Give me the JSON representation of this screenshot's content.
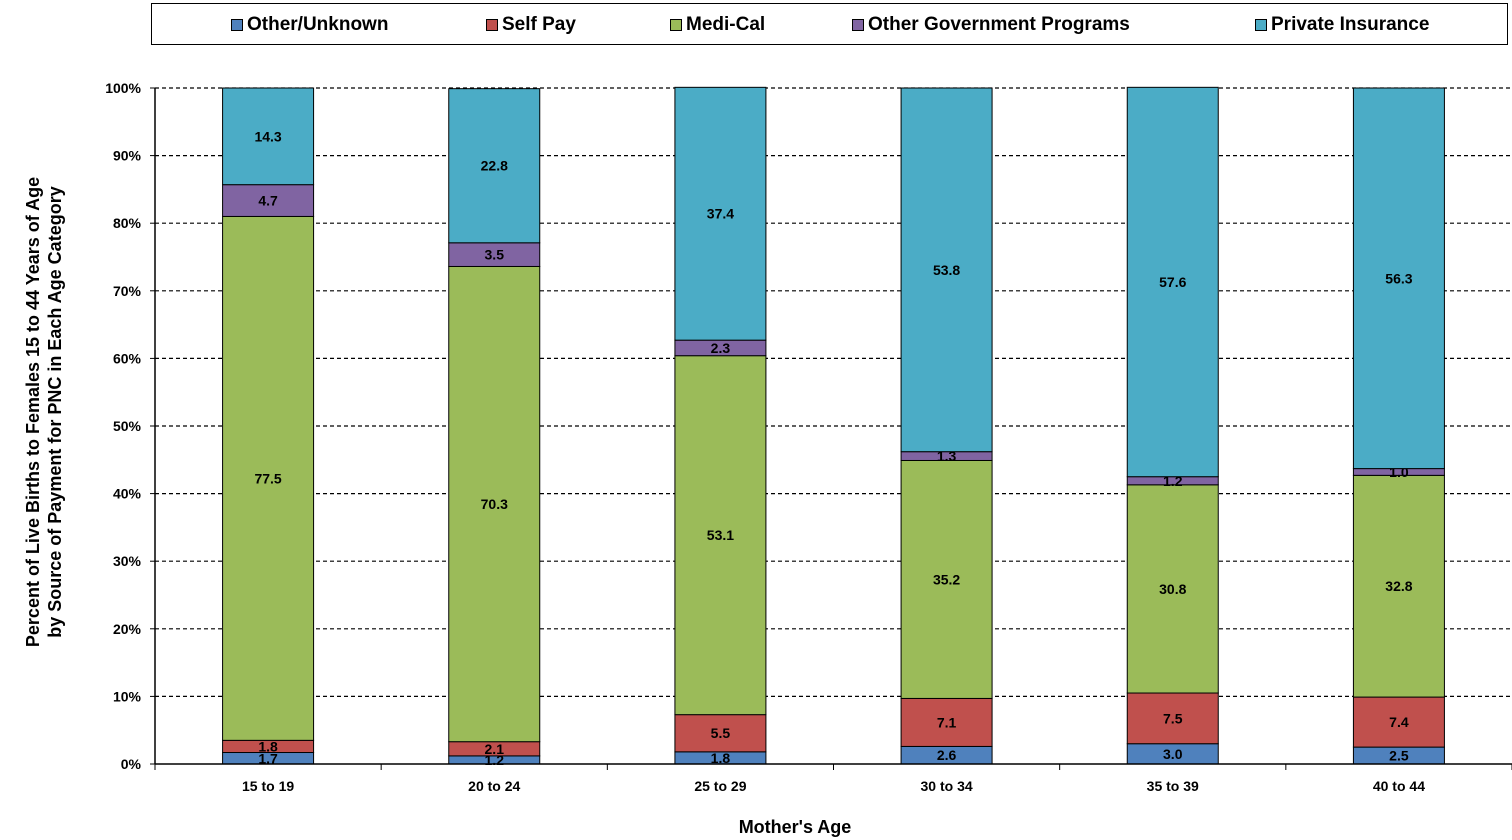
{
  "chart_data": {
    "type": "bar",
    "stacked": true,
    "percent_stacked": true,
    "title": "",
    "xlabel": "Mother's Age",
    "ylabel_lines": [
      "Percent of Live Births to Females 15 to 44 Years of Age",
      "by Source of Payment for PNC in Each Age Category"
    ],
    "categories": [
      "15 to 19",
      "20 to 24",
      "25 to 29",
      "30 to 34",
      "35 to 39",
      "40 to 44"
    ],
    "ylim": [
      0,
      100
    ],
    "yticks": [
      "0%",
      "10%",
      "20%",
      "30%",
      "40%",
      "50%",
      "60%",
      "70%",
      "80%",
      "90%",
      "100%"
    ],
    "grid": "horizontal-dashed",
    "legend_position": "top",
    "series": [
      {
        "name": "Other/Unknown",
        "color": "#4F81BD",
        "values": [
          1.7,
          1.2,
          1.8,
          2.6,
          3.0,
          2.5
        ],
        "labels": [
          "1.7",
          "1.2",
          "1.8",
          "2.6",
          "3.0",
          "2.5"
        ]
      },
      {
        "name": "Self Pay",
        "color": "#C0504D",
        "values": [
          1.8,
          2.1,
          5.5,
          7.1,
          7.5,
          7.4
        ],
        "labels": [
          "1.8",
          "2.1",
          "5.5",
          "7.1",
          "7.5",
          "7.4"
        ]
      },
      {
        "name": "Medi-Cal",
        "color": "#9BBB59",
        "values": [
          77.5,
          70.3,
          53.1,
          35.2,
          30.8,
          32.8
        ],
        "labels": [
          "77.5",
          "70.3",
          "53.1",
          "35.2",
          "30.8",
          "32.8"
        ]
      },
      {
        "name": "Other Government Programs",
        "color": "#8064A2",
        "values": [
          4.7,
          3.5,
          2.3,
          1.3,
          1.2,
          1.0
        ],
        "labels": [
          "4.7",
          "3.5",
          "2.3",
          "1.3",
          "1.2",
          "1.0"
        ]
      },
      {
        "name": "Private Insurance",
        "color": "#4BACC6",
        "values": [
          14.3,
          22.8,
          37.4,
          53.8,
          57.6,
          56.3
        ],
        "labels": [
          "14.3",
          "22.8",
          "37.4",
          "53.8",
          "57.6",
          "56.3"
        ]
      }
    ]
  }
}
